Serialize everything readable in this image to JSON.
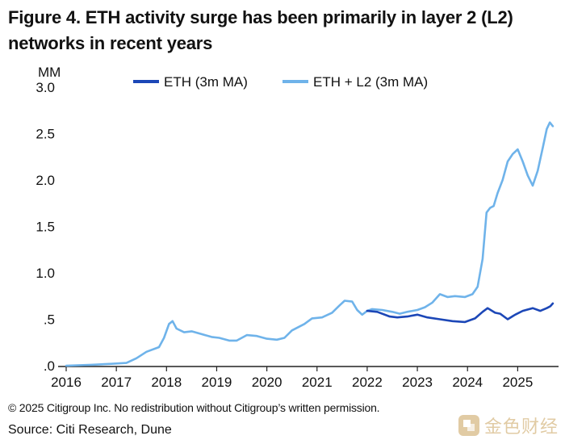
{
  "header": {
    "title": "Figure 4. ETH activity surge has been primarily in layer 2 (L2) networks in recent years"
  },
  "footer": {
    "copyright": "© 2025 Citigroup Inc. No redistribution without Citigroup’s written permission.",
    "source": "Source: Citi Research, Dune"
  },
  "watermark": {
    "text": "金色财经",
    "icon": "gold-logo-icon"
  },
  "colors": {
    "eth": "#1c47b7",
    "eth_l2": "#6fb3ea",
    "axis": "#222222",
    "watermark": "#c9a15a"
  },
  "chart_data": {
    "type": "line",
    "title": "Figure 4. ETH activity surge has been primarily in layer 2 (L2) networks in recent years",
    "ylabel": "MM",
    "xlabel": "",
    "xlim": [
      2016.0,
      2025.75
    ],
    "ylim": [
      0,
      3.0
    ],
    "grid": false,
    "legend_position": "top",
    "yticks": [
      {
        "value": 0,
        "label": ".0"
      },
      {
        "value": 0.5,
        "label": ".5"
      },
      {
        "value": 1.0,
        "label": "1.0"
      },
      {
        "value": 1.5,
        "label": "1.5"
      },
      {
        "value": 2.0,
        "label": "2.0"
      },
      {
        "value": 2.5,
        "label": "2.5"
      },
      {
        "value": 3.0,
        "label": "3.0"
      }
    ],
    "xticks": [
      {
        "value": 2016,
        "label": "2016"
      },
      {
        "value": 2017,
        "label": "2017"
      },
      {
        "value": 2018,
        "label": "2018"
      },
      {
        "value": 2019,
        "label": "2019"
      },
      {
        "value": 2020,
        "label": "2020"
      },
      {
        "value": 2021,
        "label": "2021"
      },
      {
        "value": 2022,
        "label": "2022"
      },
      {
        "value": 2023,
        "label": "2023"
      },
      {
        "value": 2024,
        "label": "2024"
      },
      {
        "value": 2025,
        "label": "2025"
      }
    ],
    "series": [
      {
        "name": "ETH + L2 (3m MA)",
        "color": "#6fb3ea",
        "points": [
          [
            2016.0,
            0.0
          ],
          [
            2016.5,
            0.01
          ],
          [
            2016.9,
            0.02
          ],
          [
            2017.2,
            0.03
          ],
          [
            2017.4,
            0.08
          ],
          [
            2017.6,
            0.15
          ],
          [
            2017.85,
            0.2
          ],
          [
            2017.95,
            0.3
          ],
          [
            2018.05,
            0.45
          ],
          [
            2018.12,
            0.48
          ],
          [
            2018.2,
            0.4
          ],
          [
            2018.35,
            0.36
          ],
          [
            2018.5,
            0.37
          ],
          [
            2018.7,
            0.34
          ],
          [
            2018.9,
            0.31
          ],
          [
            2019.05,
            0.3
          ],
          [
            2019.25,
            0.27
          ],
          [
            2019.4,
            0.27
          ],
          [
            2019.6,
            0.33
          ],
          [
            2019.8,
            0.32
          ],
          [
            2020.0,
            0.29
          ],
          [
            2020.2,
            0.28
          ],
          [
            2020.35,
            0.3
          ],
          [
            2020.5,
            0.38
          ],
          [
            2020.75,
            0.45
          ],
          [
            2020.9,
            0.51
          ],
          [
            2021.1,
            0.52
          ],
          [
            2021.3,
            0.57
          ],
          [
            2021.45,
            0.65
          ],
          [
            2021.55,
            0.7
          ],
          [
            2021.7,
            0.69
          ],
          [
            2021.8,
            0.6
          ],
          [
            2021.9,
            0.55
          ],
          [
            2022.0,
            0.59
          ],
          [
            2022.1,
            0.61
          ],
          [
            2022.3,
            0.6
          ],
          [
            2022.5,
            0.58
          ],
          [
            2022.65,
            0.56
          ],
          [
            2022.8,
            0.58
          ],
          [
            2023.0,
            0.6
          ],
          [
            2023.15,
            0.63
          ],
          [
            2023.3,
            0.68
          ],
          [
            2023.45,
            0.77
          ],
          [
            2023.6,
            0.74
          ],
          [
            2023.75,
            0.75
          ],
          [
            2023.95,
            0.74
          ],
          [
            2024.1,
            0.77
          ],
          [
            2024.2,
            0.85
          ],
          [
            2024.3,
            1.15
          ],
          [
            2024.38,
            1.65
          ],
          [
            2024.45,
            1.7
          ],
          [
            2024.52,
            1.72
          ],
          [
            2024.6,
            1.86
          ],
          [
            2024.7,
            2.0
          ],
          [
            2024.8,
            2.2
          ],
          [
            2024.9,
            2.28
          ],
          [
            2025.0,
            2.33
          ],
          [
            2025.1,
            2.2
          ],
          [
            2025.2,
            2.05
          ],
          [
            2025.3,
            1.94
          ],
          [
            2025.4,
            2.1
          ],
          [
            2025.5,
            2.35
          ],
          [
            2025.58,
            2.55
          ],
          [
            2025.64,
            2.62
          ],
          [
            2025.7,
            2.58
          ]
        ]
      },
      {
        "name": "ETH (3m MA)",
        "color": "#1c47b7",
        "points": [
          [
            2022.0,
            0.59
          ],
          [
            2022.2,
            0.58
          ],
          [
            2022.45,
            0.53
          ],
          [
            2022.6,
            0.52
          ],
          [
            2022.8,
            0.53
          ],
          [
            2023.0,
            0.55
          ],
          [
            2023.2,
            0.52
          ],
          [
            2023.45,
            0.5
          ],
          [
            2023.7,
            0.48
          ],
          [
            2023.95,
            0.47
          ],
          [
            2024.15,
            0.51
          ],
          [
            2024.3,
            0.58
          ],
          [
            2024.4,
            0.62
          ],
          [
            2024.55,
            0.57
          ],
          [
            2024.65,
            0.56
          ],
          [
            2024.8,
            0.5
          ],
          [
            2024.95,
            0.55
          ],
          [
            2025.1,
            0.59
          ],
          [
            2025.3,
            0.62
          ],
          [
            2025.45,
            0.59
          ],
          [
            2025.58,
            0.62
          ],
          [
            2025.65,
            0.64
          ],
          [
            2025.7,
            0.67
          ]
        ]
      }
    ]
  }
}
